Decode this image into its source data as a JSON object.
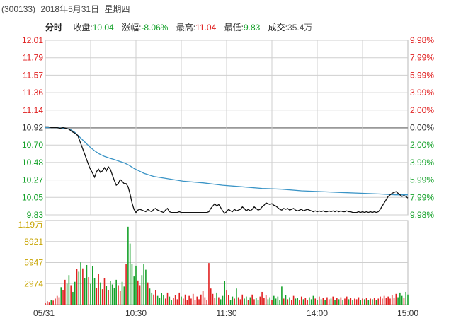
{
  "header": {
    "code": "(300133)",
    "date": "2018年5月31日",
    "weekday": "星期四"
  },
  "quote": {
    "mode_label": "分时",
    "close_label": "收盘:",
    "close_value": "10.04",
    "change_label": "涨幅:",
    "change_value": "-8.06%",
    "high_label": "最高:",
    "high_value": "11.04",
    "low_label": "最低:",
    "low_value": "9.83",
    "volume_label": "成交:",
    "volume_value": "35.4万"
  },
  "colors": {
    "up": "#e02020",
    "down": "#15a12a",
    "price_line": "#111111",
    "avg_line": "#3a94c6",
    "grid": "#cfcfcf",
    "prev_close_line": "#999999"
  },
  "chart_data": {
    "type": "line",
    "prev_close": 10.92,
    "price_axis": {
      "ylim": [
        9.83,
        12.01
      ],
      "left_ticks": [
        "12.01",
        "11.79",
        "11.57",
        "11.36",
        "11.14",
        "10.92",
        "10.70",
        "10.48",
        "10.27",
        "10.05",
        "9.83"
      ],
      "right_ticks": [
        "9.98%",
        "7.99%",
        "5.99%",
        "3.99%",
        "2.00%",
        "0.00%",
        "2.00%",
        "3.99%",
        "5.99%",
        "7.99%",
        "9.98%"
      ]
    },
    "volume_axis": {
      "ylim": [
        0,
        11900
      ],
      "ticks": [
        "1.19万",
        "8921",
        "5947",
        "2974"
      ]
    },
    "x_ticks": [
      "05/31",
      "10:30",
      "11:30",
      "14:00",
      "15:00"
    ],
    "price_series": [
      [
        0,
        10.93
      ],
      [
        3,
        10.93
      ],
      [
        6,
        10.92
      ],
      [
        9,
        10.92
      ],
      [
        12,
        10.92
      ],
      [
        15,
        10.91
      ],
      [
        18,
        10.92
      ],
      [
        21,
        10.91
      ],
      [
        24,
        10.9
      ],
      [
        27,
        10.87
      ],
      [
        30,
        10.85
      ],
      [
        33,
        10.82
      ],
      [
        36,
        10.72
      ],
      [
        39,
        10.62
      ],
      [
        42,
        10.52
      ],
      [
        45,
        10.42
      ],
      [
        48,
        10.35
      ],
      [
        50,
        10.3
      ],
      [
        52,
        10.37
      ],
      [
        54,
        10.4
      ],
      [
        56,
        10.36
      ],
      [
        58,
        10.38
      ],
      [
        60,
        10.42
      ],
      [
        62,
        10.38
      ],
      [
        64,
        10.43
      ],
      [
        66,
        10.4
      ],
      [
        68,
        10.33
      ],
      [
        70,
        10.26
      ],
      [
        72,
        10.2
      ],
      [
        74,
        10.22
      ],
      [
        76,
        10.27
      ],
      [
        78,
        10.25
      ],
      [
        80,
        10.22
      ],
      [
        82,
        10.22
      ],
      [
        84,
        10.18
      ],
      [
        86,
        10.09
      ],
      [
        88,
        9.98
      ],
      [
        90,
        9.9
      ],
      [
        92,
        9.86
      ],
      [
        94,
        9.89
      ],
      [
        96,
        9.9
      ],
      [
        98,
        9.89
      ],
      [
        100,
        9.88
      ],
      [
        102,
        9.87
      ],
      [
        104,
        9.9
      ],
      [
        106,
        9.88
      ],
      [
        108,
        9.87
      ],
      [
        110,
        9.9
      ],
      [
        112,
        9.91
      ],
      [
        114,
        9.89
      ],
      [
        116,
        9.88
      ],
      [
        118,
        9.87
      ],
      [
        120,
        9.86
      ],
      [
        122,
        9.89
      ],
      [
        124,
        9.91
      ],
      [
        126,
        9.87
      ],
      [
        128,
        9.86
      ],
      [
        130,
        9.86
      ],
      [
        132,
        9.86
      ],
      [
        134,
        9.86
      ],
      [
        136,
        9.87
      ],
      [
        138,
        9.86
      ],
      [
        140,
        9.86
      ],
      [
        142,
        9.86
      ],
      [
        144,
        9.86
      ],
      [
        146,
        9.86
      ],
      [
        148,
        9.86
      ],
      [
        150,
        9.86
      ],
      [
        152,
        9.86
      ],
      [
        154,
        9.86
      ],
      [
        156,
        9.86
      ],
      [
        158,
        9.86
      ],
      [
        160,
        9.86
      ],
      [
        162,
        9.86
      ],
      [
        164,
        9.86
      ],
      [
        166,
        9.87
      ],
      [
        168,
        9.91
      ],
      [
        170,
        9.94
      ],
      [
        172,
        9.97
      ],
      [
        174,
        9.94
      ],
      [
        176,
        9.96
      ],
      [
        178,
        9.92
      ],
      [
        180,
        9.88
      ],
      [
        182,
        9.85
      ],
      [
        184,
        9.87
      ],
      [
        186,
        9.9
      ],
      [
        188,
        9.88
      ],
      [
        190,
        9.87
      ],
      [
        192,
        9.9
      ],
      [
        194,
        9.88
      ],
      [
        196,
        9.89
      ],
      [
        198,
        9.9
      ],
      [
        200,
        9.93
      ],
      [
        202,
        9.91
      ],
      [
        204,
        9.88
      ],
      [
        206,
        9.9
      ],
      [
        208,
        9.88
      ],
      [
        210,
        9.9
      ],
      [
        212,
        9.93
      ],
      [
        214,
        9.91
      ],
      [
        216,
        9.89
      ],
      [
        218,
        9.9
      ],
      [
        220,
        9.93
      ],
      [
        222,
        9.95
      ],
      [
        224,
        9.98
      ],
      [
        226,
        9.97
      ],
      [
        228,
        9.96
      ],
      [
        230,
        9.97
      ],
      [
        232,
        9.95
      ],
      [
        234,
        9.94
      ],
      [
        236,
        9.92
      ],
      [
        238,
        9.9
      ],
      [
        240,
        9.89
      ],
      [
        242,
        9.91
      ],
      [
        244,
        9.9
      ],
      [
        246,
        9.91
      ],
      [
        248,
        9.89
      ],
      [
        250,
        9.9
      ],
      [
        252,
        9.91
      ],
      [
        254,
        9.89
      ],
      [
        256,
        9.88
      ],
      [
        258,
        9.89
      ],
      [
        260,
        9.9
      ],
      [
        262,
        9.88
      ],
      [
        264,
        9.89
      ],
      [
        266,
        9.9
      ],
      [
        268,
        9.89
      ],
      [
        270,
        9.88
      ],
      [
        272,
        9.87
      ],
      [
        274,
        9.88
      ],
      [
        276,
        9.87
      ],
      [
        278,
        9.88
      ],
      [
        280,
        9.87
      ],
      [
        282,
        9.88
      ],
      [
        284,
        9.87
      ],
      [
        286,
        9.87
      ],
      [
        288,
        9.88
      ],
      [
        290,
        9.87
      ],
      [
        292,
        9.88
      ],
      [
        294,
        9.87
      ],
      [
        296,
        9.88
      ],
      [
        298,
        9.87
      ],
      [
        300,
        9.88
      ],
      [
        302,
        9.87
      ],
      [
        304,
        9.87
      ],
      [
        306,
        9.88
      ],
      [
        308,
        9.87
      ],
      [
        310,
        9.87
      ],
      [
        312,
        9.86
      ],
      [
        314,
        9.86
      ],
      [
        316,
        9.86
      ],
      [
        318,
        9.87
      ],
      [
        320,
        9.86
      ],
      [
        322,
        9.87
      ],
      [
        324,
        9.86
      ],
      [
        326,
        9.87
      ],
      [
        328,
        9.86
      ],
      [
        330,
        9.87
      ],
      [
        332,
        9.86
      ],
      [
        334,
        9.87
      ],
      [
        336,
        9.86
      ],
      [
        338,
        9.87
      ],
      [
        340,
        9.9
      ],
      [
        342,
        9.94
      ],
      [
        344,
        9.98
      ],
      [
        346,
        10.02
      ],
      [
        348,
        10.06
      ],
      [
        350,
        10.08
      ],
      [
        352,
        10.1
      ],
      [
        354,
        10.11
      ],
      [
        356,
        10.12
      ],
      [
        358,
        10.1
      ],
      [
        360,
        10.08
      ],
      [
        362,
        10.06
      ],
      [
        364,
        10.07
      ],
      [
        366,
        10.06
      ],
      [
        368,
        10.04
      ]
    ],
    "avg_series": [
      [
        0,
        10.92
      ],
      [
        10,
        10.92
      ],
      [
        20,
        10.91
      ],
      [
        25,
        10.9
      ],
      [
        30,
        10.86
      ],
      [
        35,
        10.8
      ],
      [
        40,
        10.74
      ],
      [
        45,
        10.68
      ],
      [
        50,
        10.63
      ],
      [
        55,
        10.59
      ],
      [
        60,
        10.56
      ],
      [
        65,
        10.54
      ],
      [
        70,
        10.52
      ],
      [
        75,
        10.5
      ],
      [
        80,
        10.48
      ],
      [
        85,
        10.45
      ],
      [
        90,
        10.41
      ],
      [
        95,
        10.38
      ],
      [
        100,
        10.35
      ],
      [
        110,
        10.31
      ],
      [
        120,
        10.29
      ],
      [
        130,
        10.27
      ],
      [
        140,
        10.25
      ],
      [
        160,
        10.23
      ],
      [
        180,
        10.2
      ],
      [
        200,
        10.18
      ],
      [
        220,
        10.16
      ],
      [
        240,
        10.15
      ],
      [
        260,
        10.13
      ],
      [
        280,
        10.12
      ],
      [
        300,
        10.11
      ],
      [
        320,
        10.1
      ],
      [
        340,
        10.09
      ],
      [
        355,
        10.08
      ],
      [
        368,
        10.08
      ]
    ],
    "volume_series": [
      [
        0,
        300
      ],
      [
        2,
        500
      ],
      [
        4,
        400
      ],
      [
        6,
        700
      ],
      [
        8,
        600
      ],
      [
        10,
        900
      ],
      [
        12,
        1300
      ],
      [
        14,
        1100
      ],
      [
        16,
        2600
      ],
      [
        18,
        2200
      ],
      [
        20,
        3700
      ],
      [
        22,
        3100
      ],
      [
        24,
        4400
      ],
      [
        26,
        2900
      ],
      [
        28,
        1900
      ],
      [
        30,
        3400
      ],
      [
        32,
        5300
      ],
      [
        34,
        4900
      ],
      [
        36,
        6300
      ],
      [
        38,
        5400
      ],
      [
        40,
        3900
      ],
      [
        42,
        5900
      ],
      [
        44,
        4100
      ],
      [
        46,
        3100
      ],
      [
        48,
        5700
      ],
      [
        50,
        3900
      ],
      [
        52,
        2500
      ],
      [
        54,
        4600
      ],
      [
        56,
        3300
      ],
      [
        58,
        2300
      ],
      [
        60,
        3900
      ],
      [
        62,
        2800
      ],
      [
        64,
        2200
      ],
      [
        66,
        3500
      ],
      [
        68,
        3000
      ],
      [
        70,
        2500
      ],
      [
        72,
        3700
      ],
      [
        74,
        2900
      ],
      [
        76,
        2000
      ],
      [
        78,
        3400
      ],
      [
        80,
        2700
      ],
      [
        82,
        6100
      ],
      [
        84,
        11600
      ],
      [
        86,
        9100
      ],
      [
        88,
        6100
      ],
      [
        90,
        4200
      ],
      [
        92,
        5800
      ],
      [
        94,
        3600
      ],
      [
        96,
        2900
      ],
      [
        98,
        4400
      ],
      [
        100,
        6000
      ],
      [
        102,
        5200
      ],
      [
        104,
        3300
      ],
      [
        106,
        2400
      ],
      [
        108,
        1800
      ],
      [
        110,
        1500
      ],
      [
        112,
        2200
      ],
      [
        114,
        1300
      ],
      [
        116,
        1000
      ],
      [
        118,
        1700
      ],
      [
        120,
        1400
      ],
      [
        122,
        900
      ],
      [
        124,
        1800
      ],
      [
        126,
        1200
      ],
      [
        128,
        700
      ],
      [
        130,
        1000
      ],
      [
        132,
        1400
      ],
      [
        134,
        800
      ],
      [
        136,
        1800
      ],
      [
        138,
        1200
      ],
      [
        140,
        900
      ],
      [
        142,
        1500
      ],
      [
        144,
        700
      ],
      [
        146,
        1300
      ],
      [
        148,
        900
      ],
      [
        150,
        1600
      ],
      [
        152,
        700
      ],
      [
        154,
        1200
      ],
      [
        156,
        800
      ],
      [
        158,
        1500
      ],
      [
        160,
        2000
      ],
      [
        162,
        1100
      ],
      [
        164,
        700
      ],
      [
        166,
        6200
      ],
      [
        168,
        2400
      ],
      [
        170,
        1600
      ],
      [
        172,
        1000
      ],
      [
        174,
        1800
      ],
      [
        176,
        1100
      ],
      [
        178,
        800
      ],
      [
        180,
        1300
      ],
      [
        182,
        3500
      ],
      [
        184,
        2100
      ],
      [
        186,
        1400
      ],
      [
        188,
        700
      ],
      [
        190,
        1200
      ],
      [
        192,
        900
      ],
      [
        194,
        2400
      ],
      [
        196,
        1100
      ],
      [
        198,
        800
      ],
      [
        200,
        1500
      ],
      [
        202,
        900
      ],
      [
        204,
        1200
      ],
      [
        206,
        700
      ],
      [
        208,
        1100
      ],
      [
        210,
        1500
      ],
      [
        212,
        800
      ],
      [
        214,
        1000
      ],
      [
        216,
        700
      ],
      [
        218,
        1200
      ],
      [
        220,
        1900
      ],
      [
        222,
        1000
      ],
      [
        224,
        1400
      ],
      [
        226,
        800
      ],
      [
        228,
        1100
      ],
      [
        230,
        700
      ],
      [
        232,
        1300
      ],
      [
        234,
        900
      ],
      [
        236,
        1200
      ],
      [
        238,
        700
      ],
      [
        240,
        2700
      ],
      [
        242,
        900
      ],
      [
        244,
        1400
      ],
      [
        246,
        800
      ],
      [
        248,
        1100
      ],
      [
        250,
        700
      ],
      [
        252,
        1300
      ],
      [
        254,
        900
      ],
      [
        256,
        1000
      ],
      [
        258,
        700
      ],
      [
        260,
        1200
      ],
      [
        262,
        800
      ],
      [
        264,
        1000
      ],
      [
        266,
        700
      ],
      [
        268,
        1100
      ],
      [
        270,
        800
      ],
      [
        272,
        1300
      ],
      [
        274,
        900
      ],
      [
        276,
        700
      ],
      [
        278,
        1200
      ],
      [
        280,
        800
      ],
      [
        282,
        1000
      ],
      [
        284,
        700
      ],
      [
        286,
        1100
      ],
      [
        288,
        800
      ],
      [
        290,
        900
      ],
      [
        292,
        1200
      ],
      [
        294,
        700
      ],
      [
        296,
        1000
      ],
      [
        298,
        800
      ],
      [
        300,
        1100
      ],
      [
        302,
        700
      ],
      [
        304,
        900
      ],
      [
        306,
        1200
      ],
      [
        308,
        800
      ],
      [
        310,
        1000
      ],
      [
        312,
        700
      ],
      [
        314,
        900
      ],
      [
        316,
        800
      ],
      [
        318,
        1100
      ],
      [
        320,
        700
      ],
      [
        322,
        900
      ],
      [
        324,
        800
      ],
      [
        326,
        1000
      ],
      [
        328,
        700
      ],
      [
        330,
        900
      ],
      [
        332,
        800
      ],
      [
        334,
        1000
      ],
      [
        336,
        700
      ],
      [
        338,
        900
      ],
      [
        340,
        1200
      ],
      [
        342,
        900
      ],
      [
        344,
        1300
      ],
      [
        346,
        1000
      ],
      [
        348,
        1200
      ],
      [
        350,
        900
      ],
      [
        352,
        1400
      ],
      [
        354,
        1000
      ],
      [
        356,
        1600
      ],
      [
        358,
        1100
      ],
      [
        360,
        1800
      ],
      [
        362,
        1300
      ],
      [
        364,
        1000
      ],
      [
        366,
        1900
      ],
      [
        368,
        1500
      ]
    ]
  }
}
